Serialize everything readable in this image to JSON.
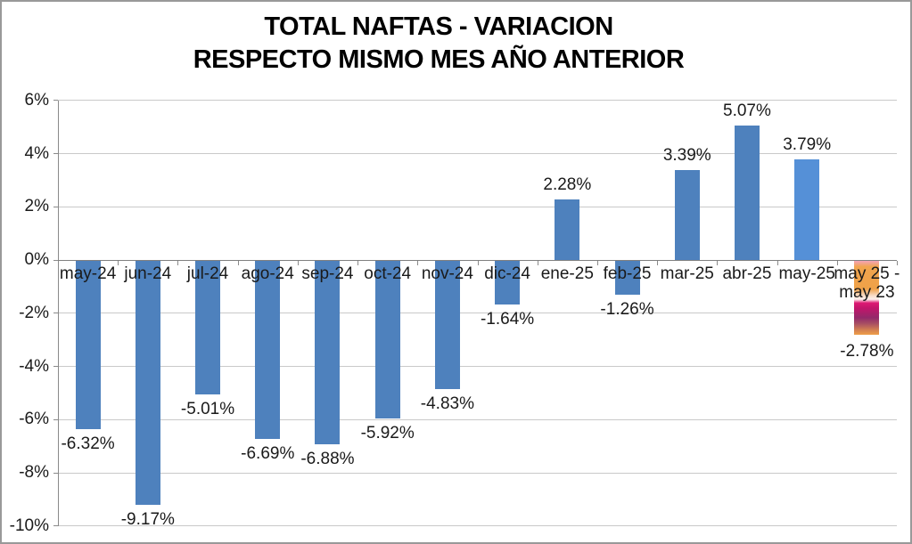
{
  "window": {
    "border_color": "#999999",
    "background": "#FFFFFF"
  },
  "title": {
    "line1": "TOTAL NAFTAS - VARIACION",
    "line2": "RESPECTO MISMO MES AÑO ANTERIOR"
  },
  "chart_data": {
    "type": "bar",
    "title": "TOTAL NAFTAS - VARIACION",
    "subtitle": "RESPECTO MISMO MES AÑO ANTERIOR",
    "categories": [
      "may-24",
      "jun-24",
      "jul-24",
      "ago-24",
      "sep-24",
      "oct-24",
      "nov-24",
      "dic-24",
      "ene-25",
      "feb-25",
      "mar-25",
      "abr-25",
      "may-25",
      "may 25 - may 23"
    ],
    "values": [
      -6.32,
      -9.17,
      -5.01,
      -6.69,
      -6.88,
      -5.92,
      -4.83,
      -1.64,
      2.28,
      -1.26,
      3.39,
      5.07,
      3.79,
      -2.78
    ],
    "data_labels": [
      "-6.32%",
      "-9.17%",
      "-5.01%",
      "-6.69%",
      "-6.88%",
      "-5.92%",
      "-4.83%",
      "-1.64%",
      "2.28%",
      "-1.26%",
      "3.39%",
      "5.07%",
      "3.79%",
      "-2.78%"
    ],
    "ylim": [
      -10,
      6
    ],
    "y_ticks": [
      6,
      4,
      2,
      0,
      -2,
      -4,
      -6,
      -8,
      -10
    ],
    "y_tick_labels": [
      "6%",
      "4%",
      "2%",
      "0%",
      "-2%",
      "-4%",
      "-6%",
      "-8%",
      "-10%"
    ],
    "xlabel": "",
    "ylabel": "",
    "grid": true,
    "legend": false,
    "bar_fill": [
      "#4E81BD",
      "#4E81BD",
      "#4E81BD",
      "#4E81BD",
      "#4E81BD",
      "#4E81BD",
      "#4E81BD",
      "#4E81BD",
      "#4E81BD",
      "#4E81BD",
      "#4E81BD",
      "#4E81BD",
      "#5590D7",
      "gradient"
    ],
    "gradient_stops": [
      "#F4A3B8 0%",
      "#F1A54E 8%",
      "#EFA148 38%",
      "#F9DCC8 47%",
      "#FDF0ED 52%",
      "#DD1973 57%",
      "#C2156B 64%",
      "#93296A 77%",
      "#A84F63 85%",
      "#D07D52 93%",
      "#EF9F49 100%"
    ],
    "colors": {
      "bar_default": "#4E81BD",
      "bar_light": "#5590D7",
      "gridline": "#C9C9C9",
      "zero_axis": "#808080",
      "axis": "#8A8A8A",
      "text": "#1A1A1A",
      "title_text": "#000000"
    }
  }
}
